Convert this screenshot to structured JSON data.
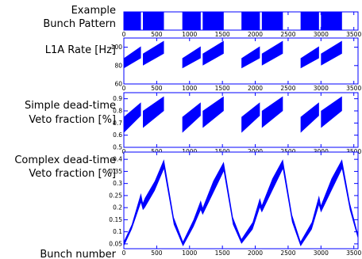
{
  "chart_data": [
    {
      "type": "area",
      "row_label": [
        "Example",
        "Bunch Pattern"
      ],
      "xlabel": "",
      "xlim": [
        0,
        3564
      ],
      "x_ticks": [
        "0",
        "500",
        "1000",
        "1500",
        "2000",
        "2500",
        "3000",
        "3500"
      ],
      "ylim": [
        0,
        1
      ],
      "y_ticks": [],
      "filled_bunch_ranges": [
        [
          0,
          260
        ],
        [
          290,
          610
        ],
        [
          890,
          1170
        ],
        [
          1200,
          1520
        ],
        [
          1790,
          2070
        ],
        [
          2100,
          2420
        ],
        [
          2690,
          2970
        ],
        [
          3000,
          3320
        ]
      ],
      "color": "#0000ff"
    },
    {
      "type": "area",
      "row_label": [
        "L1A Rate [Hz]"
      ],
      "xlabel": "",
      "xlim": [
        0,
        3564
      ],
      "x_ticks": [
        "0",
        "500",
        "1000",
        "1500",
        "2000",
        "2500",
        "3000",
        "3500"
      ],
      "ylim": [
        60,
        110
      ],
      "y_ticks": [
        "60",
        "80",
        "100"
      ],
      "trains": [
        [
          0,
          260
        ],
        [
          290,
          610
        ],
        [
          890,
          1170
        ],
        [
          1200,
          1520
        ],
        [
          1790,
          2070
        ],
        [
          2100,
          2420
        ],
        [
          2690,
          2970
        ],
        [
          3000,
          3320
        ]
      ],
      "band_start": [
        [
          77,
          88
        ],
        [
          80,
          93
        ]
      ],
      "band_end": [
        [
          88,
          101
        ],
        [
          93,
          107
        ]
      ],
      "color": "#0000ff"
    },
    {
      "type": "area",
      "row_label": [
        "Simple dead-time",
        "Veto fraction [%]"
      ],
      "xlabel": "",
      "xlim": [
        0,
        3564
      ],
      "x_ticks": [
        "0",
        "500",
        "1000",
        "1500",
        "2000",
        "2500",
        "3000",
        "3500"
      ],
      "ylim": [
        0.5,
        0.95
      ],
      "y_ticks": [
        "0.5",
        "0.6",
        "0.7",
        "0.8",
        "0.9"
      ],
      "trains": [
        [
          0,
          260
        ],
        [
          290,
          610
        ],
        [
          890,
          1170
        ],
        [
          1200,
          1520
        ],
        [
          1790,
          2070
        ],
        [
          2100,
          2420
        ],
        [
          2690,
          2970
        ],
        [
          3000,
          3320
        ]
      ],
      "band_start": [
        [
          0.62,
          0.75
        ],
        [
          0.66,
          0.8
        ]
      ],
      "band_end": [
        [
          0.76,
          0.87
        ],
        [
          0.8,
          0.92
        ]
      ],
      "color": "#0000ff"
    },
    {
      "type": "area",
      "row_label": [
        "Complex dead-time",
        "Veto fraction [%]"
      ],
      "xlabel": "Bunch number",
      "xlim": [
        0,
        3564
      ],
      "x_ticks": [
        "0",
        "500",
        "1000",
        "1500",
        "2000",
        "2500",
        "3000",
        "3500"
      ],
      "ylim": [
        0.03,
        0.43
      ],
      "y_ticks": [
        "0.05",
        "0.1",
        "0.15",
        "0.2",
        "0.25",
        "0.3",
        "0.35",
        "0.4"
      ],
      "upper": [
        [
          0,
          0.06
        ],
        [
          120,
          0.13
        ],
        [
          260,
          0.26
        ],
        [
          290,
          0.22
        ],
        [
          320,
          0.24
        ],
        [
          470,
          0.31
        ],
        [
          610,
          0.4
        ],
        [
          760,
          0.16
        ],
        [
          900,
          0.06
        ],
        [
          1060,
          0.15
        ],
        [
          1170,
          0.23
        ],
        [
          1200,
          0.2
        ],
        [
          1360,
          0.31
        ],
        [
          1520,
          0.39
        ],
        [
          1660,
          0.16
        ],
        [
          1790,
          0.07
        ],
        [
          1960,
          0.14
        ],
        [
          2070,
          0.24
        ],
        [
          2100,
          0.21
        ],
        [
          2260,
          0.32
        ],
        [
          2420,
          0.4
        ],
        [
          2560,
          0.17
        ],
        [
          2690,
          0.06
        ],
        [
          2860,
          0.14
        ],
        [
          2970,
          0.25
        ],
        [
          3000,
          0.21
        ],
        [
          3160,
          0.32
        ],
        [
          3320,
          0.4
        ],
        [
          3440,
          0.22
        ],
        [
          3564,
          0.09
        ]
      ],
      "lower": [
        [
          0,
          0.04
        ],
        [
          120,
          0.11
        ],
        [
          260,
          0.22
        ],
        [
          290,
          0.19
        ],
        [
          320,
          0.2
        ],
        [
          470,
          0.27
        ],
        [
          610,
          0.36
        ],
        [
          760,
          0.13
        ],
        [
          900,
          0.04
        ],
        [
          1060,
          0.12
        ],
        [
          1170,
          0.19
        ],
        [
          1200,
          0.17
        ],
        [
          1360,
          0.26
        ],
        [
          1520,
          0.35
        ],
        [
          1660,
          0.13
        ],
        [
          1790,
          0.05
        ],
        [
          1960,
          0.11
        ],
        [
          2070,
          0.2
        ],
        [
          2100,
          0.18
        ],
        [
          2260,
          0.27
        ],
        [
          2420,
          0.36
        ],
        [
          2560,
          0.14
        ],
        [
          2690,
          0.04
        ],
        [
          2860,
          0.11
        ],
        [
          2970,
          0.21
        ],
        [
          3000,
          0.18
        ],
        [
          3160,
          0.27
        ],
        [
          3320,
          0.36
        ],
        [
          3440,
          0.19
        ],
        [
          3564,
          0.07
        ]
      ],
      "color": "#0000ff"
    }
  ]
}
